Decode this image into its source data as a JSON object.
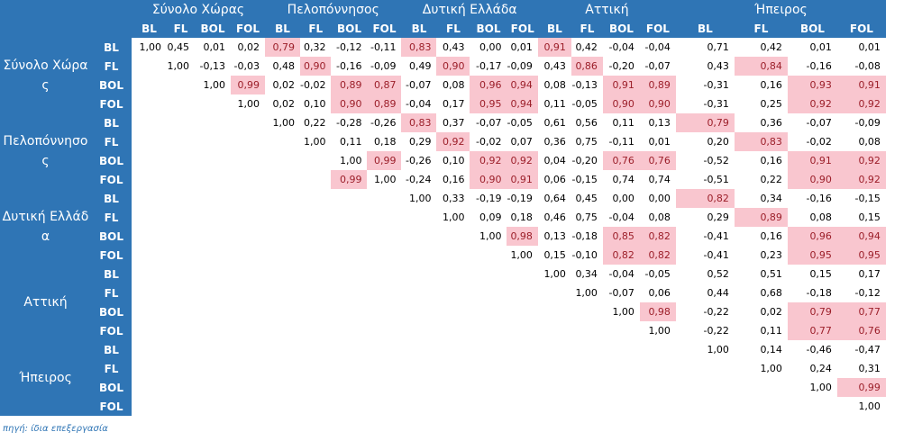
{
  "column_groups": [
    "Σύνολο Χώρας",
    "Πελοπόννησος",
    "Δυτική Ελλάδα",
    "Αττική",
    "Ήπειρος"
  ],
  "row_groups": [
    "Σύνολο Χώρας",
    "Πελοπόννησος",
    "Δυτική Ελλάδα",
    "Αττική",
    "Ήπειρος"
  ],
  "sub_labels": [
    "BL",
    "FL",
    "BOL",
    "FOL"
  ],
  "rows": [
    [
      "1,00",
      "0,45",
      "0,01",
      "0,02",
      "0,79",
      "0,32",
      "-0,12",
      "-0,11",
      "0,83",
      "0,43",
      "0,00",
      "0,01",
      "0,91",
      "0,42",
      "-0,04",
      "-0,04",
      "0,71",
      "0,42",
      "0,01",
      "0,01"
    ],
    [
      "",
      "1,00",
      "-0,13",
      "-0,03",
      "0,48",
      "0,90",
      "-0,16",
      "-0,09",
      "0,49",
      "0,90",
      "-0,17",
      "-0,09",
      "0,43",
      "0,86",
      "-0,20",
      "-0,07",
      "0,43",
      "0,84",
      "-0,16",
      "-0,08"
    ],
    [
      "",
      "",
      "1,00",
      "0,99",
      "0,02",
      "-0,02",
      "0,89",
      "0,87",
      "-0,07",
      "0,08",
      "0,96",
      "0,94",
      "0,08",
      "-0,13",
      "0,91",
      "0,89",
      "-0,31",
      "0,16",
      "0,93",
      "0,91"
    ],
    [
      "",
      "",
      "",
      "1,00",
      "0,02",
      "0,10",
      "0,90",
      "0,89",
      "-0,04",
      "0,17",
      "0,95",
      "0,94",
      "0,11",
      "-0,05",
      "0,90",
      "0,90",
      "-0,31",
      "0,25",
      "0,92",
      "0,92"
    ],
    [
      "",
      "",
      "",
      "",
      "1,00",
      "0,22",
      "-0,28",
      "-0,26",
      "0,83",
      "0,37",
      "-0,07",
      "-0,05",
      "0,61",
      "0,56",
      "0,11",
      "0,13",
      "0,79",
      "0,36",
      "-0,07",
      "-0,09"
    ],
    [
      "",
      "",
      "",
      "",
      "",
      "1,00",
      "0,11",
      "0,18",
      "0,29",
      "0,92",
      "-0,02",
      "0,07",
      "0,36",
      "0,75",
      "-0,11",
      "0,01",
      "0,20",
      "0,83",
      "-0,02",
      "0,08"
    ],
    [
      "",
      "",
      "",
      "",
      "",
      "",
      "1,00",
      "0,99",
      "-0,26",
      "0,10",
      "0,92",
      "0,92",
      "0,04",
      "-0,20",
      "0,76",
      "0,76",
      "-0,52",
      "0,16",
      "0,91",
      "0,92"
    ],
    [
      "",
      "",
      "",
      "",
      "",
      "",
      "0,99",
      "1,00",
      "-0,24",
      "0,16",
      "0,90",
      "0,91",
      "0,06",
      "-0,15",
      "0,74",
      "0,74",
      "-0,51",
      "0,22",
      "0,90",
      "0,92"
    ],
    [
      "",
      "",
      "",
      "",
      "",
      "",
      "",
      "",
      "1,00",
      "0,33",
      "-0,19",
      "-0,19",
      "0,64",
      "0,45",
      "0,00",
      "0,00",
      "0,82",
      "0,34",
      "-0,16",
      "-0,15"
    ],
    [
      "",
      "",
      "",
      "",
      "",
      "",
      "",
      "",
      "",
      "1,00",
      "0,09",
      "0,18",
      "0,46",
      "0,75",
      "-0,04",
      "0,08",
      "0,29",
      "0,89",
      "0,08",
      "0,15"
    ],
    [
      "",
      "",
      "",
      "",
      "",
      "",
      "",
      "",
      "",
      "",
      "1,00",
      "0,98",
      "0,13",
      "-0,18",
      "0,85",
      "0,82",
      "-0,41",
      "0,16",
      "0,96",
      "0,94"
    ],
    [
      "",
      "",
      "",
      "",
      "",
      "",
      "",
      "",
      "",
      "",
      "",
      "1,00",
      "0,15",
      "-0,10",
      "0,82",
      "0,82",
      "-0,41",
      "0,23",
      "0,95",
      "0,95"
    ],
    [
      "",
      "",
      "",
      "",
      "",
      "",
      "",
      "",
      "",
      "",
      "",
      "",
      "1,00",
      "0,34",
      "-0,04",
      "-0,05",
      "0,52",
      "0,51",
      "0,15",
      "0,17"
    ],
    [
      "",
      "",
      "",
      "",
      "",
      "",
      "",
      "",
      "",
      "",
      "",
      "",
      "",
      "1,00",
      "-0,07",
      "0,06",
      "0,44",
      "0,68",
      "-0,18",
      "-0,12"
    ],
    [
      "",
      "",
      "",
      "",
      "",
      "",
      "",
      "",
      "",
      "",
      "",
      "",
      "",
      "",
      "1,00",
      "0,98",
      "-0,22",
      "0,02",
      "0,79",
      "0,77"
    ],
    [
      "",
      "",
      "",
      "",
      "",
      "",
      "",
      "",
      "",
      "",
      "",
      "",
      "",
      "",
      "",
      "1,00",
      "-0,22",
      "0,11",
      "0,77",
      "0,76"
    ],
    [
      "",
      "",
      "",
      "",
      "",
      "",
      "",
      "",
      "",
      "",
      "",
      "",
      "",
      "",
      "",
      "",
      "1,00",
      "0,14",
      "-0,46",
      "-0,47"
    ],
    [
      "",
      "",
      "",
      "",
      "",
      "",
      "",
      "",
      "",
      "",
      "",
      "",
      "",
      "",
      "",
      "",
      "",
      "1,00",
      "0,24",
      "0,31"
    ],
    [
      "",
      "",
      "",
      "",
      "",
      "",
      "",
      "",
      "",
      "",
      "",
      "",
      "",
      "",
      "",
      "",
      "",
      "",
      "1,00",
      "0,99"
    ],
    [
      "",
      "",
      "",
      "",
      "",
      "",
      "",
      "",
      "",
      "",
      "",
      "",
      "",
      "",
      "",
      "",
      "",
      "",
      "",
      "1,00"
    ]
  ],
  "highlight": [
    [
      0,
      4
    ],
    [
      0,
      8
    ],
    [
      0,
      12
    ],
    [
      1,
      5
    ],
    [
      1,
      9
    ],
    [
      1,
      13
    ],
    [
      1,
      17
    ],
    [
      2,
      3
    ],
    [
      2,
      6
    ],
    [
      2,
      7
    ],
    [
      2,
      10
    ],
    [
      2,
      11
    ],
    [
      2,
      14
    ],
    [
      2,
      15
    ],
    [
      2,
      18
    ],
    [
      2,
      19
    ],
    [
      3,
      6
    ],
    [
      3,
      7
    ],
    [
      3,
      10
    ],
    [
      3,
      11
    ],
    [
      3,
      14
    ],
    [
      3,
      15
    ],
    [
      3,
      18
    ],
    [
      3,
      19
    ],
    [
      4,
      8
    ],
    [
      4,
      16
    ],
    [
      5,
      9
    ],
    [
      5,
      17
    ],
    [
      6,
      7
    ],
    [
      6,
      10
    ],
    [
      6,
      11
    ],
    [
      6,
      14
    ],
    [
      6,
      15
    ],
    [
      6,
      18
    ],
    [
      6,
      19
    ],
    [
      7,
      6
    ],
    [
      7,
      10
    ],
    [
      7,
      11
    ],
    [
      7,
      18
    ],
    [
      7,
      19
    ],
    [
      8,
      16
    ],
    [
      9,
      17
    ],
    [
      10,
      11
    ],
    [
      10,
      14
    ],
    [
      10,
      15
    ],
    [
      10,
      18
    ],
    [
      10,
      19
    ],
    [
      11,
      14
    ],
    [
      11,
      15
    ],
    [
      11,
      18
    ],
    [
      11,
      19
    ],
    [
      14,
      15
    ],
    [
      14,
      18
    ],
    [
      14,
      19
    ],
    [
      15,
      18
    ],
    [
      15,
      19
    ],
    [
      18,
      19
    ]
  ],
  "colors": {
    "header_blue": "#2f75b5",
    "highlight_fill": "#f9c6cf",
    "highlight_text": "#9c1f2a"
  },
  "source_note": "πηγή: ίδια επεξεργασία"
}
